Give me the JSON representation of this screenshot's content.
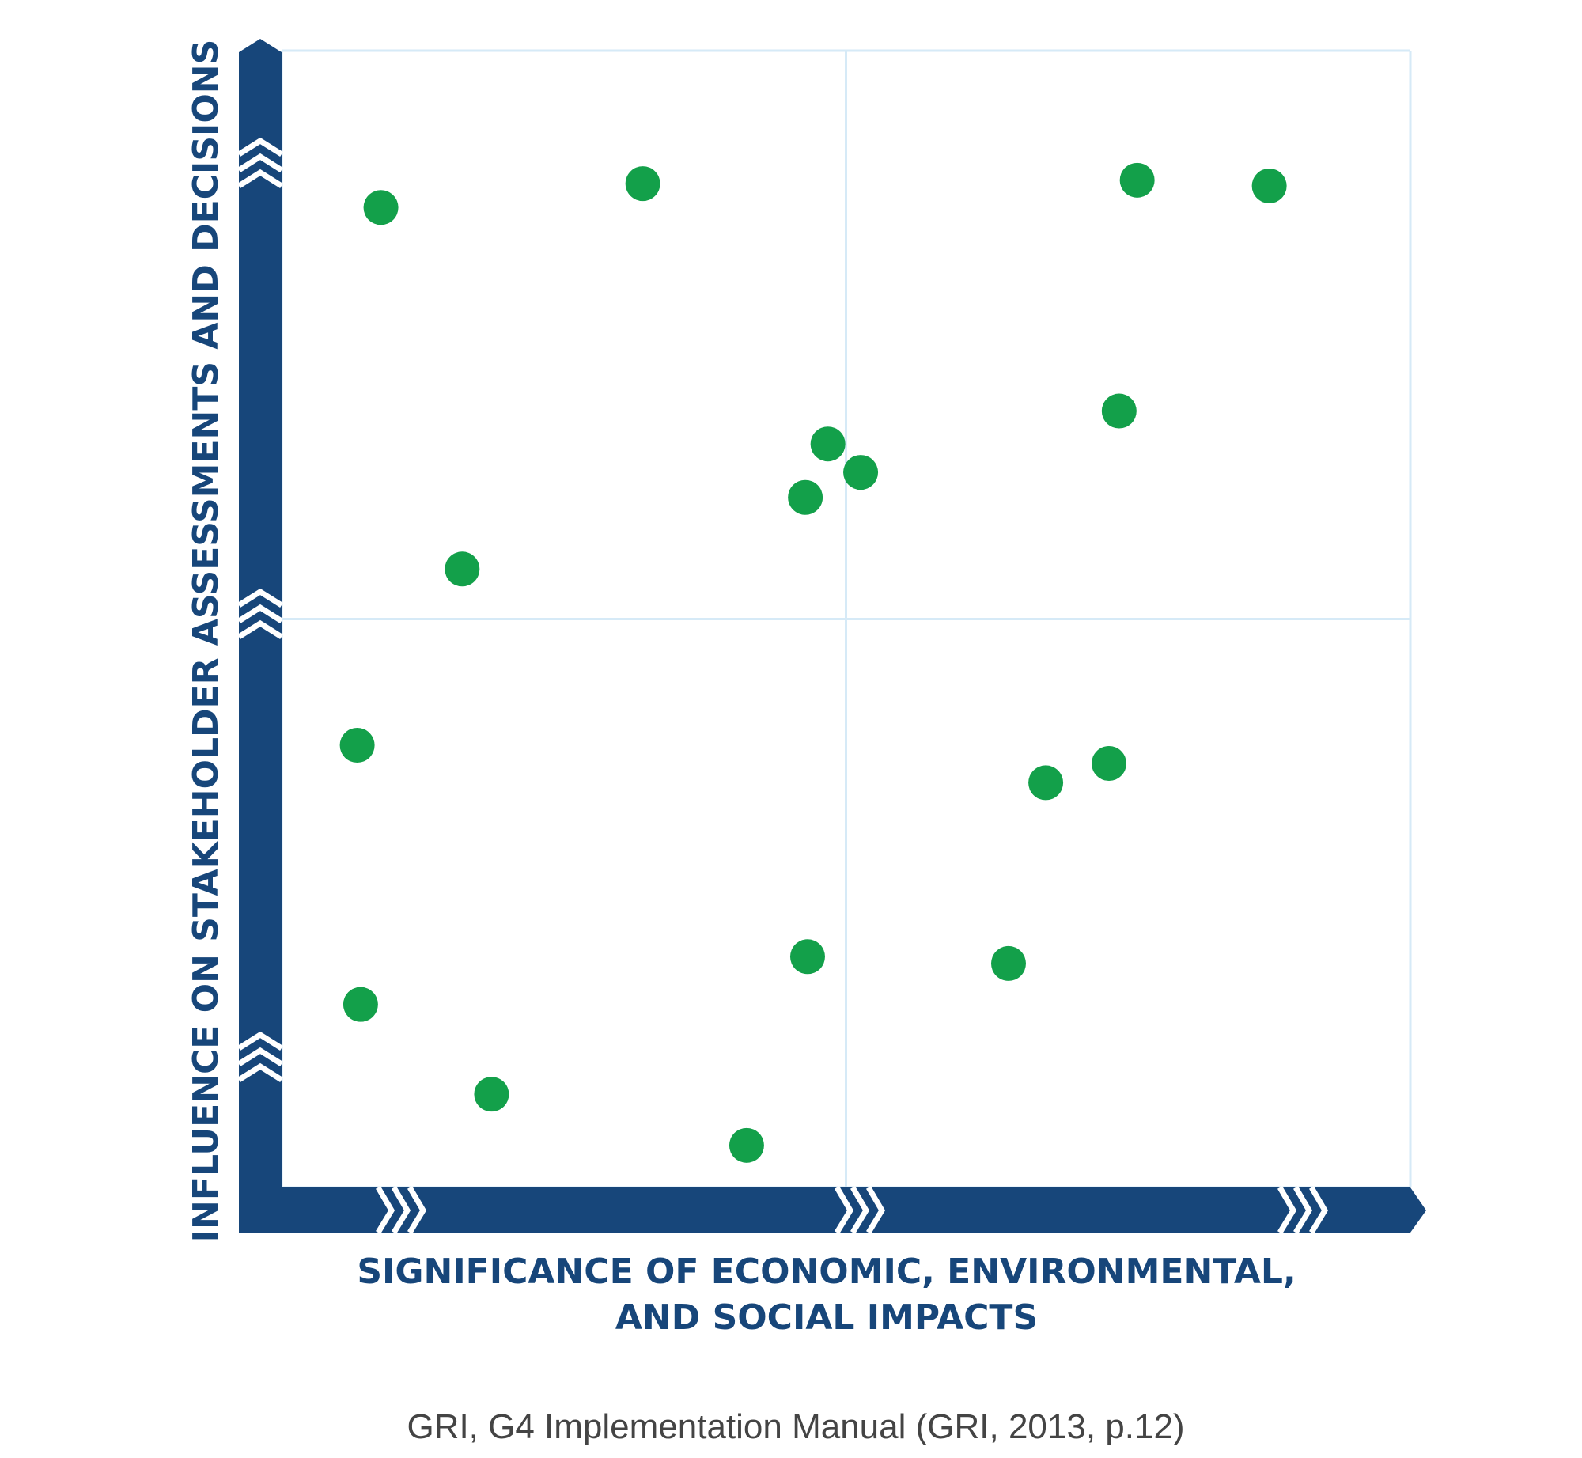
{
  "chart_data": {
    "type": "scatter",
    "x_label_lines": [
      "SIGNIFICANCE OF ECONOMIC, ENVIRONMENTAL,",
      "AND SOCIAL IMPACTS"
    ],
    "y_label": "INFLUENCE ON STAKEHOLDER ASSESSMENTS AND DECISIONS",
    "caption": "GRI, G4 Implementation Manual (GRI, 2013, p.12)",
    "x": [
      8.8,
      32.0,
      75.8,
      87.5,
      74.2,
      48.4,
      51.3,
      46.4,
      16.0,
      6.7,
      67.7,
      73.3,
      46.6,
      64.4,
      7.0,
      18.6,
      41.2
    ],
    "values": [
      86.2,
      88.3,
      88.6,
      88.1,
      68.3,
      65.4,
      62.9,
      60.7,
      54.4,
      38.9,
      35.6,
      37.3,
      20.3,
      19.7,
      16.1,
      8.2,
      3.7
    ],
    "color": "#13a04a",
    "xlim": [
      0,
      100
    ],
    "ylim": [
      0,
      100
    ],
    "xticks": [
      0,
      50,
      100
    ],
    "yticks": [
      0,
      50,
      100
    ],
    "grid": true
  }
}
